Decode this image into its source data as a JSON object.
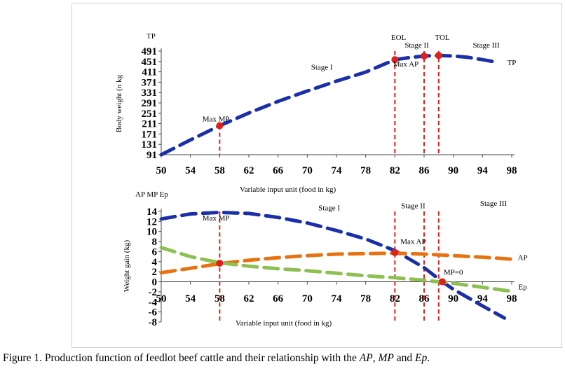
{
  "chart_data": [
    {
      "type": "line",
      "panel": "top",
      "corner_label": "TP",
      "ylabel": "Body weight (n kg",
      "xlabel": "Variable input unit (food in kg)",
      "x_ticks": [
        50,
        54,
        58,
        62,
        66,
        70,
        74,
        78,
        82,
        86,
        90,
        94,
        98
      ],
      "y_ticks": [
        91,
        131,
        171,
        211,
        251,
        291,
        331,
        371,
        411,
        451,
        491
      ],
      "xlim": [
        50,
        98
      ],
      "ylim": [
        91,
        491
      ],
      "series": [
        {
          "name": "TP",
          "color": "#1a2fa8",
          "x": [
            50,
            54,
            58,
            62,
            66,
            70,
            74,
            78,
            82,
            84,
            86,
            88,
            90,
            92,
            94,
            96
          ],
          "y": [
            91,
            148,
            203,
            252,
            297,
            337,
            375,
            410,
            458,
            466,
            472,
            474,
            472,
            467,
            458,
            448
          ]
        }
      ],
      "vlines": [
        {
          "x": 58,
          "from": 91,
          "to": 203,
          "color": "#e0201a"
        },
        {
          "x": 82,
          "from": 91,
          "to": 491,
          "color": "#e0201a"
        },
        {
          "x": 86,
          "from": 91,
          "to": 491,
          "color": "#e0201a"
        },
        {
          "x": 88,
          "from": 91,
          "to": 491,
          "color": "#e0201a"
        }
      ],
      "points": [
        {
          "x": 58,
          "y": 203,
          "color": "#e0201a"
        },
        {
          "x": 82,
          "y": 458,
          "color": "#e0201a"
        },
        {
          "x": 86,
          "y": 472,
          "color": "#e0201a"
        },
        {
          "x": 88,
          "y": 474,
          "color": "#e0201a"
        }
      ],
      "annotations": [
        {
          "text": "Max MP",
          "x": 57.5,
          "y": 220
        },
        {
          "text": "Stage I",
          "x": 72,
          "y": 420
        },
        {
          "text": "EOL",
          "x": 82.5,
          "y": 534
        },
        {
          "text": "Stage II",
          "x": 85,
          "y": 505
        },
        {
          "text": "TOL",
          "x": 88.5,
          "y": 534
        },
        {
          "text": "Stage III",
          "x": 94.5,
          "y": 505
        },
        {
          "text": "Max AP",
          "x": 83.5,
          "y": 432
        },
        {
          "text": "TP",
          "x": 98,
          "y": 437
        }
      ]
    },
    {
      "type": "line",
      "panel": "bottom",
      "corner_label": "AP MP Ep",
      "ylabel": "Weight gain (kg)",
      "xlabel": "Variable input unit (food in kg)",
      "x_ticks": [
        50,
        54,
        58,
        62,
        66,
        70,
        74,
        78,
        82,
        86,
        90,
        94,
        98
      ],
      "y_ticks": [
        14,
        12,
        10,
        8,
        6,
        4,
        2,
        0,
        -2,
        -4,
        -6,
        -8
      ],
      "xlim": [
        50,
        98
      ],
      "ylim": [
        -8,
        14
      ],
      "series": [
        {
          "name": "MP",
          "color": "#1a2fa8",
          "x": [
            50,
            54,
            58,
            62,
            66,
            70,
            74,
            78,
            82,
            86,
            88.5,
            90,
            94,
            97
          ],
          "y": [
            12.5,
            13.5,
            13.8,
            13.6,
            12.8,
            11.7,
            10.2,
            8.5,
            6.2,
            2.8,
            0,
            -1.5,
            -4.8,
            -7.2
          ]
        },
        {
          "name": "AP",
          "color": "#e8720f",
          "x": [
            50,
            54,
            58,
            62,
            66,
            70,
            74,
            78,
            82,
            86,
            90,
            94,
            98
          ],
          "y": [
            1.8,
            2.7,
            3.6,
            4.3,
            4.8,
            5.2,
            5.5,
            5.6,
            5.7,
            5.5,
            5.2,
            4.9,
            4.5
          ]
        },
        {
          "name": "Ep",
          "color": "#8cc151",
          "x": [
            50,
            54,
            58,
            62,
            66,
            70,
            74,
            78,
            82,
            86,
            90,
            94,
            98
          ],
          "y": [
            6.8,
            5.0,
            3.8,
            3.1,
            2.6,
            2.2,
            1.7,
            1.2,
            0.8,
            0.3,
            -0.3,
            -1.1,
            -1.9
          ]
        }
      ],
      "vlines": [
        {
          "x": 58,
          "from": -8,
          "to": 14,
          "color": "#e0201a"
        },
        {
          "x": 82,
          "from": -8,
          "to": 14,
          "color": "#e0201a"
        },
        {
          "x": 86,
          "from": -8,
          "to": 14,
          "color": "#e0201a"
        },
        {
          "x": 88,
          "from": -8,
          "to": 14,
          "color": "#e0201a"
        }
      ],
      "points": [
        {
          "x": 58,
          "y": 3.7,
          "color": "#e0201a"
        },
        {
          "x": 82,
          "y": 5.8,
          "color": "#e0201a"
        },
        {
          "x": 88.5,
          "y": 0,
          "color": "#e0201a"
        }
      ],
      "annotations": [
        {
          "text": "Max MP",
          "x": 57.5,
          "y": 12.2
        },
        {
          "text": "Stage I",
          "x": 73,
          "y": 14.2
        },
        {
          "text": "Stage II",
          "x": 84.5,
          "y": 14.6
        },
        {
          "text": "Stage III",
          "x": 95.5,
          "y": 15.1
        },
        {
          "text": "Max AP",
          "x": 84.5,
          "y": 7.5
        },
        {
          "text": "MP=0",
          "x": 90,
          "y": 1.4
        },
        {
          "text": "AP",
          "x": 99.5,
          "y": 4.3
        },
        {
          "text": "Ep",
          "x": 99.5,
          "y": -1.5
        }
      ]
    }
  ],
  "caption": {
    "prefix": "Figure 1. Production function of feedlot beef cattle and their relationship with the ",
    "ap": "AP",
    "comma": ", ",
    "mp": "MP",
    "and": " and ",
    "ep": "Ep",
    "period": "."
  }
}
